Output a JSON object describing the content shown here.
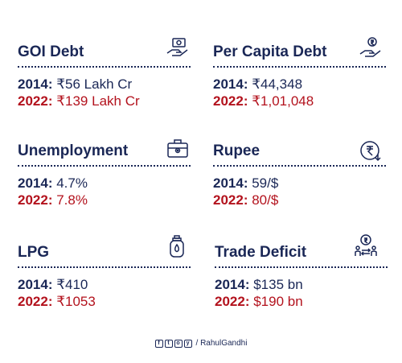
{
  "colors": {
    "navy": "#1a2756",
    "red": "#b3121d"
  },
  "cards": [
    {
      "title": "GOI Debt",
      "icon": "money-hand-icon",
      "y2014": "2014:",
      "v2014": " ₹56 Lakh Cr",
      "y2022": "2022:",
      "v2022": " ₹139 Lakh Cr"
    },
    {
      "title": "Per Capita Debt",
      "icon": "coin-hand-icon",
      "y2014": "2014:",
      "v2014": " ₹44,348",
      "y2022": "2022:",
      "v2022": " ₹1,01,048"
    },
    {
      "title": "Unemployment",
      "icon": "briefcase-icon",
      "y2014": "2014:",
      "v2014": " 4.7%",
      "y2022": "2022:",
      "v2022": " 7.8%"
    },
    {
      "title": "Rupee",
      "icon": "rupee-down-icon",
      "y2014": "2014:",
      "v2014": " 59/$",
      "y2022": "2022:",
      "v2022": " 80/$"
    },
    {
      "title": "LPG",
      "icon": "gas-cylinder-icon",
      "y2014": "2014:",
      "v2014": " ₹410",
      "y2022": "2022:",
      "v2022": " ₹1053"
    },
    {
      "title": "Trade Deficit",
      "icon": "trade-deficit-icon",
      "y2014": "2014:",
      "v2014": " $135 bn",
      "y2022": "2022:",
      "v2022": " $190 bn"
    }
  ],
  "footer": {
    "social_icons": [
      "f",
      "t",
      "o",
      "y"
    ],
    "handle": "/ RahulGandhi"
  }
}
